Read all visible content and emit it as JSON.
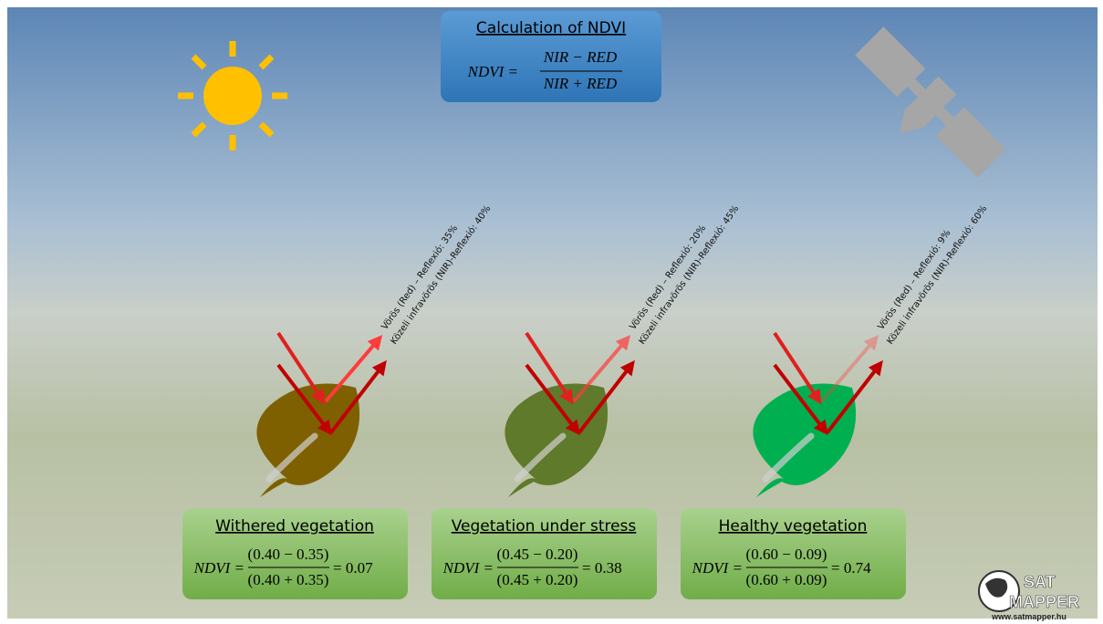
{
  "header": {
    "title": "Calculation of NDVI",
    "lhs": "NDVI =",
    "numerator": "NIR − RED",
    "denominator": "NIR + RED"
  },
  "panels": [
    {
      "red_label": "Vörös (Red) – Reflexió: 35%",
      "nir_label": "Közeli infravörös (NIR)-Reflexió: 40%",
      "title": "Withered vegetation",
      "lhs": "NDVI =",
      "numerator": "(0.40 − 0.35)",
      "denominator": "(0.40 + 0.35)",
      "result": "= 0.07"
    },
    {
      "red_label": "Vörös (Red) – Reflexió: 20%",
      "nir_label": "Közeli infravörös (NIR)-Reflexió: 45%",
      "title": "Vegetation under stress",
      "lhs": "NDVI =",
      "numerator": "(0.45 − 0.20)",
      "denominator": "(0.45 + 0.20)",
      "result": "= 0.38"
    },
    {
      "red_label": "Vörös (Red) – Reflexió: 9%",
      "nir_label": "Közeli infravörös (NIR)-Reflexió: 60%",
      "title": "Healthy vegetation",
      "lhs": "NDVI =",
      "numerator": "(0.60 − 0.09)",
      "denominator": "(0.60 + 0.09)",
      "result": "= 0.74"
    }
  ],
  "logo": {
    "line1": "SAT",
    "line2": "MAPPER",
    "url": "www.satmapper.hu"
  }
}
